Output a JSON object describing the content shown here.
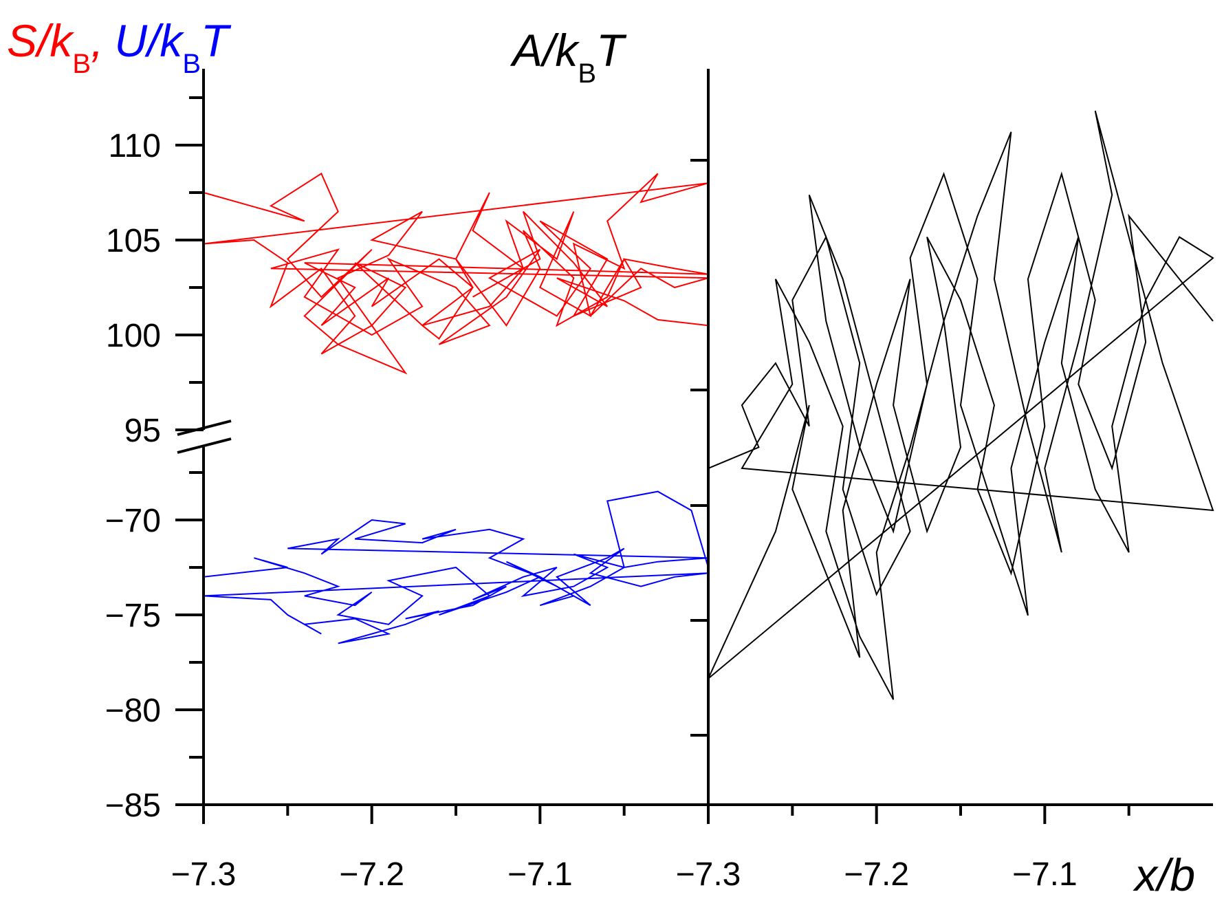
{
  "chart_data": [
    {
      "type": "line",
      "panel": "left",
      "ylabel_parts": {
        "S": "S",
        "slash1": "/",
        "k1": "k",
        "B1": "B",
        "comma": ",",
        "U": "U",
        "slash2": "/",
        "k2": "k",
        "B2": "B",
        "T": "T"
      },
      "colors": {
        "S": "#ff0000",
        "U": "#0000ff",
        "axis": "#000000"
      },
      "xlim": [
        -7.3,
        -7.0
      ],
      "xticks": [
        "-7.3",
        "-7.2",
        "-7.1"
      ],
      "xtick_values": [
        -7.3,
        -7.2,
        -7.1
      ],
      "yaxis_break": {
        "lower_range": [
          -85,
          -65
        ],
        "upper_range": [
          93,
          113
        ]
      },
      "yticks": [
        "110",
        "105",
        "100",
        "95",
        "−70",
        "−75",
        "−80",
        "−85"
      ],
      "ytick_values": [
        110,
        105,
        100,
        95,
        -70,
        -75,
        -80,
        -85
      ],
      "series": [
        {
          "key": "S",
          "x": [
            -7.3,
            -7.24,
            -7.26,
            -7.23,
            -7.22,
            -7.25,
            -7.23,
            -7.2,
            -7.24,
            -7.22,
            -7.18,
            -7.2,
            -7.22,
            -7.19,
            -7.17,
            -7.2,
            -7.15,
            -7.13,
            -7.14,
            -7.11,
            -7.12,
            -7.09,
            -7.08,
            -7.1,
            -7.07,
            -7.08,
            -7.05,
            -7.06,
            -7.03,
            -7.04,
            -7.0,
            -7.3,
            -7.27,
            -7.25,
            -7.26,
            -7.23,
            -7.21,
            -7.23,
            -7.2,
            -7.18,
            -7.21,
            -7.17,
            -7.16,
            -7.14,
            -7.15,
            -7.12,
            -7.1,
            -7.11,
            -7.08,
            -7.09,
            -7.06,
            -7.05,
            -7.07,
            -7.04,
            -7.02,
            -7.0,
            -7.26,
            -7.22,
            -7.24,
            -7.2,
            -7.17,
            -7.19,
            -7.15,
            -7.13,
            -7.16,
            -7.12,
            -7.1,
            -7.13,
            -7.09,
            -7.07,
            -7.1,
            -7.06,
            -7.08,
            -7.04,
            -7.05,
            -7.02,
            -7.0,
            -7.24,
            -7.21,
            -7.23,
            -7.19,
            -7.2,
            -7.16,
            -7.14,
            -7.17,
            -7.13,
            -7.11,
            -7.14,
            -7.1,
            -7.11,
            -7.08,
            -7.06,
            -7.09,
            -7.05,
            -7.03,
            -7.0
          ],
          "y": [
            107.5,
            106,
            106.8,
            108.5,
            106.5,
            104,
            102,
            104.5,
            101,
            99.5,
            98,
            100.5,
            103,
            104.2,
            106.5,
            105,
            104,
            107.5,
            105.5,
            103.5,
            106,
            104,
            106.5,
            102.5,
            101,
            104.8,
            103.5,
            106,
            108.5,
            107,
            108,
            104.8,
            105,
            103.8,
            101.5,
            103.5,
            101,
            99,
            100.5,
            102.5,
            103.8,
            100.5,
            99.8,
            102.5,
            104,
            100.5,
            103.5,
            105.5,
            103,
            100.5,
            102,
            104,
            101,
            103.5,
            102.5,
            103,
            103.5,
            104.5,
            102,
            100,
            101.5,
            104,
            102.5,
            100.5,
            99.5,
            102,
            104.5,
            103,
            101,
            103.5,
            106,
            104,
            101,
            102.5,
            104,
            103.5,
            103.2,
            103.8,
            102.5,
            100.5,
            103,
            101.5,
            104,
            102.5,
            100.5,
            101.5,
            103.5,
            102,
            104,
            106.5,
            103.8,
            101.5,
            103,
            101.8,
            100.8,
            100.5
          ]
        },
        {
          "key": "U",
          "x": [
            -7.3,
            -7.25,
            -7.27,
            -7.24,
            -7.22,
            -7.24,
            -7.21,
            -7.2,
            -7.22,
            -7.19,
            -7.17,
            -7.19,
            -7.15,
            -7.13,
            -7.16,
            -7.12,
            -7.1,
            -7.12,
            -7.09,
            -7.07,
            -7.09,
            -7.06,
            -7.05,
            -7.07,
            -7.04,
            -7.02,
            -7.0,
            -7.3,
            -7.26,
            -7.25,
            -7.23,
            -7.24,
            -7.21,
            -7.19,
            -7.22,
            -7.18,
            -7.16,
            -7.18,
            -7.14,
            -7.12,
            -7.14,
            -7.11,
            -7.09,
            -7.11,
            -7.08,
            -7.06,
            -7.08,
            -7.05,
            -7.03,
            -7.0,
            -7.25,
            -7.22,
            -7.23,
            -7.2,
            -7.18,
            -7.21,
            -7.17,
            -7.15,
            -7.17,
            -7.13,
            -7.11,
            -7.13,
            -7.1,
            -7.08,
            -7.1,
            -7.07,
            -7.05,
            -7.06,
            -7.03,
            -7.01,
            -7.0
          ],
          "y": [
            -73,
            -72.5,
            -72,
            -72.8,
            -73.5,
            -74,
            -74.5,
            -73.8,
            -75,
            -75.5,
            -74,
            -73.2,
            -72.5,
            -74,
            -75,
            -73.8,
            -73,
            -72.2,
            -73.5,
            -74.5,
            -73,
            -72,
            -71.5,
            -72.8,
            -73.5,
            -73,
            -72.8,
            -74,
            -74.2,
            -75,
            -76,
            -75.5,
            -75.2,
            -76,
            -76.5,
            -75.5,
            -74.8,
            -75.2,
            -74.5,
            -73.5,
            -74.2,
            -73,
            -72.5,
            -74,
            -73.5,
            -72.5,
            -71.8,
            -72.5,
            -72.2,
            -72,
            -71.5,
            -71,
            -71.8,
            -70,
            -70.2,
            -71,
            -71.2,
            -70.5,
            -71,
            -70.5,
            -71,
            -72,
            -73,
            -74,
            -74.5,
            -73.5,
            -72.5,
            -69,
            -68.5,
            -69.5,
            -72.5
          ]
        }
      ]
    },
    {
      "type": "line",
      "panel": "right",
      "ylabel_parts": {
        "A": "A",
        "slash": "/",
        "k": "k",
        "B": "B",
        "T": "T"
      },
      "colors": {
        "A": "#000000"
      },
      "xlabel_parts": {
        "x": "x",
        "slash": "/",
        "b": "b"
      },
      "xlim": [
        -7.3,
        -7.0
      ],
      "xticks": [
        "-7.3",
        "-7.2",
        "-7.1"
      ],
      "xtick_values": [
        -7.3,
        -7.2,
        -7.1
      ],
      "series": [
        {
          "key": "A",
          "x": [
            -7.3,
            -7.27,
            -7.28,
            -7.26,
            -7.24,
            -7.25,
            -7.23,
            -7.21,
            -7.22,
            -7.2,
            -7.18,
            -7.2,
            -7.22,
            -7.24,
            -7.23,
            -7.21,
            -7.19,
            -7.17,
            -7.18,
            -7.16,
            -7.14,
            -7.15,
            -7.13,
            -7.11,
            -7.12,
            -7.1,
            -7.08,
            -7.09,
            -7.07,
            -7.05,
            -7.06,
            -7.04,
            -7.02,
            -7.0,
            -7.3,
            -7.26,
            -7.24,
            -7.25,
            -7.23,
            -7.21,
            -7.22,
            -7.2,
            -7.18,
            -7.19,
            -7.17,
            -7.15,
            -7.16,
            -7.14,
            -7.12,
            -7.13,
            -7.11,
            -7.09,
            -7.1,
            -7.08,
            -7.06,
            -7.07,
            -7.05,
            -7.03,
            -7.0,
            -7.28,
            -7.25,
            -7.26,
            -7.24,
            -7.22,
            -7.23,
            -7.21,
            -7.19,
            -7.2,
            -7.18,
            -7.16,
            -7.17,
            -7.15,
            -7.13,
            -7.14,
            -7.12,
            -7.1,
            -7.11,
            -7.09,
            -7.07,
            -7.08,
            -7.06,
            -7.04,
            -7.05,
            -7.03,
            -7.0
          ],
          "y": [
            -69,
            -68,
            -66,
            -64,
            -67,
            -61,
            -58,
            -64,
            -70,
            -75,
            -72,
            -66,
            -60,
            -56,
            -62,
            -68,
            -72,
            -65,
            -59,
            -55,
            -60,
            -66,
            -71,
            -76,
            -69,
            -63,
            -58,
            -64,
            -70,
            -73,
            -67,
            -61,
            -58,
            -59,
            -79,
            -72,
            -66,
            -70,
            -74,
            -78,
            -71,
            -65,
            -60,
            -66,
            -72,
            -68,
            -62,
            -57,
            -53,
            -60,
            -67,
            -73,
            -69,
            -63,
            -56,
            -52,
            -58,
            -64,
            -71,
            -69,
            -65,
            -60,
            -63,
            -67,
            -72,
            -77,
            -80,
            -73,
            -68,
            -62,
            -58,
            -61,
            -66,
            -70,
            -74,
            -67,
            -60,
            -55,
            -61,
            -65,
            -69,
            -63,
            -57,
            -59,
            -62
          ]
        }
      ]
    }
  ]
}
